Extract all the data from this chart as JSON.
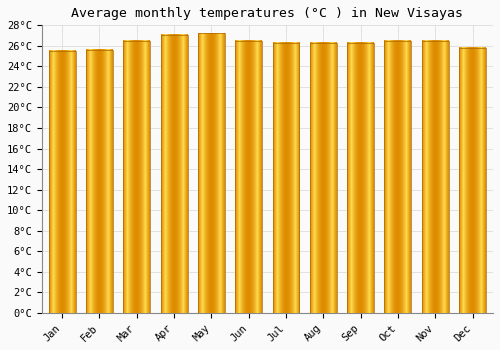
{
  "title": "Average monthly temperatures (°C ) in New Visayas",
  "months": [
    "Jan",
    "Feb",
    "Mar",
    "Apr",
    "May",
    "Jun",
    "Jul",
    "Aug",
    "Sep",
    "Oct",
    "Nov",
    "Dec"
  ],
  "temperatures": [
    25.5,
    25.6,
    26.5,
    27.1,
    27.2,
    26.5,
    26.3,
    26.3,
    26.3,
    26.5,
    26.5,
    25.8
  ],
  "ylim": [
    0,
    28
  ],
  "yticks": [
    0,
    2,
    4,
    6,
    8,
    10,
    12,
    14,
    16,
    18,
    20,
    22,
    24,
    26,
    28
  ],
  "bar_color_light": "#FFD966",
  "bar_color_main": "#FFA500",
  "bar_color_dark": "#E08800",
  "background_color": "#FAFAFA",
  "grid_color": "#DDDDDD",
  "title_fontsize": 9.5,
  "tick_fontsize": 7.5,
  "bar_width": 0.72,
  "figsize": [
    5.0,
    3.5
  ],
  "dpi": 100
}
